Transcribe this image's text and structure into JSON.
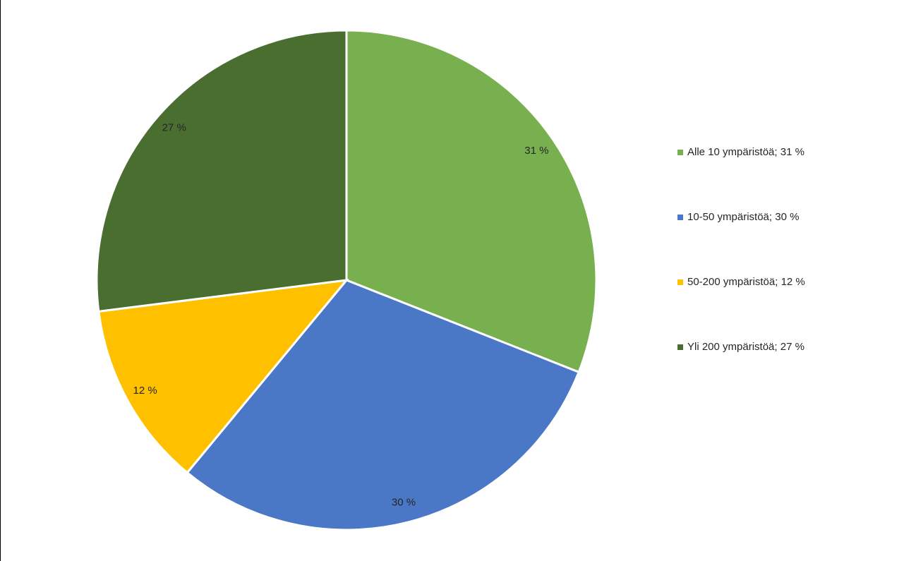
{
  "chart_data": {
    "type": "pie",
    "categories": [
      "Alle 10 ympäristöä; 31 %",
      "10-50 ympäristöä; 30 %",
      "50-200 ympäristöä; 12 %",
      "Yli 200 ympäristöä; 27 %"
    ],
    "values": [
      31,
      30,
      12,
      27
    ],
    "value_labels": [
      "31 %",
      "30 %",
      "12 %",
      "27 %"
    ],
    "colors": [
      "#78b04f",
      "#4a78c6",
      "#ffc000",
      "#4a6e30"
    ],
    "legend": "right"
  }
}
